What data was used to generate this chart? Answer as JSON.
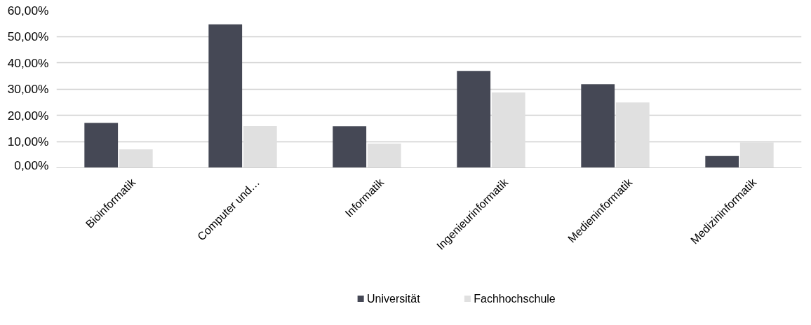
{
  "chart_data": {
    "type": "bar",
    "categories": [
      "Bioinformatik",
      "Computer und…",
      "Informatik",
      "Ingenieurinformatik",
      "Medieninformatik",
      "Medizininformatik"
    ],
    "series": [
      {
        "name": "Universität",
        "color": "#454855",
        "values": [
          17.1,
          54.6,
          15.8,
          36.9,
          31.8,
          4.5
        ]
      },
      {
        "name": "Fachhochschule",
        "color": "#e0e0e0",
        "values": [
          7.0,
          15.9,
          9.2,
          28.7,
          24.9,
          9.7
        ]
      }
    ],
    "ylim": [
      0,
      60
    ],
    "yticks": [
      {
        "value": 0,
        "label": "0,00%"
      },
      {
        "value": 10,
        "label": "10,00%"
      },
      {
        "value": 20,
        "label": "20,00%"
      },
      {
        "value": 30,
        "label": "30,00%"
      },
      {
        "value": 40,
        "label": "40,00%"
      },
      {
        "value": 50,
        "label": "50,00%"
      },
      {
        "value": 60,
        "label": "60,00%"
      }
    ],
    "grid": "y",
    "legend": "bottom"
  }
}
